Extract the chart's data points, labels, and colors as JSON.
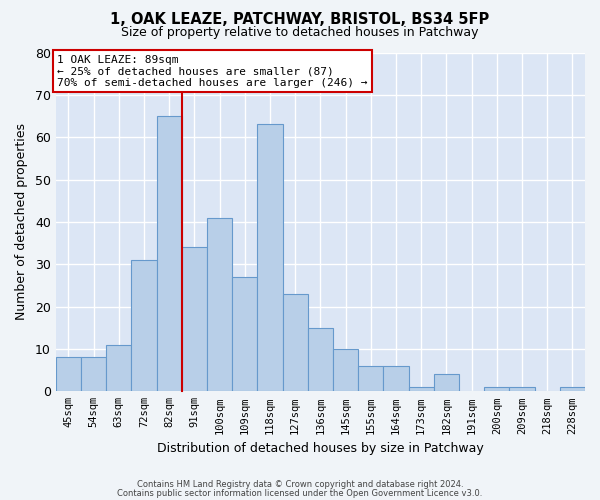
{
  "title1": "1, OAK LEAZE, PATCHWAY, BRISTOL, BS34 5FP",
  "title2": "Size of property relative to detached houses in Patchway",
  "xlabel": "Distribution of detached houses by size in Patchway",
  "ylabel": "Number of detached properties",
  "bar_labels": [
    "45sqm",
    "54sqm",
    "63sqm",
    "72sqm",
    "82sqm",
    "91sqm",
    "100sqm",
    "109sqm",
    "118sqm",
    "127sqm",
    "136sqm",
    "145sqm",
    "155sqm",
    "164sqm",
    "173sqm",
    "182sqm",
    "191sqm",
    "200sqm",
    "209sqm",
    "218sqm",
    "228sqm"
  ],
  "bar_values": [
    8,
    8,
    11,
    31,
    65,
    34,
    41,
    27,
    63,
    23,
    15,
    10,
    6,
    6,
    1,
    4,
    0,
    1,
    1,
    0,
    1
  ],
  "bar_color": "#b8cfe8",
  "bar_edge_color": "#6699cc",
  "axes_bg_color": "#dce6f5",
  "fig_bg_color": "#f0f4f8",
  "grid_color": "#ffffff",
  "redline_color": "#cc0000",
  "ann_line1": "1 OAK LEAZE: 89sqm",
  "ann_line2": "← 25% of detached houses are smaller (87)",
  "ann_line3": "70% of semi-detached houses are larger (246) →",
  "redline_x": 4.5,
  "ylim": [
    0,
    80
  ],
  "yticks": [
    0,
    10,
    20,
    30,
    40,
    50,
    60,
    70,
    80
  ],
  "footer1": "Contains HM Land Registry data © Crown copyright and database right 2024.",
  "footer2": "Contains public sector information licensed under the Open Government Licence v3.0."
}
